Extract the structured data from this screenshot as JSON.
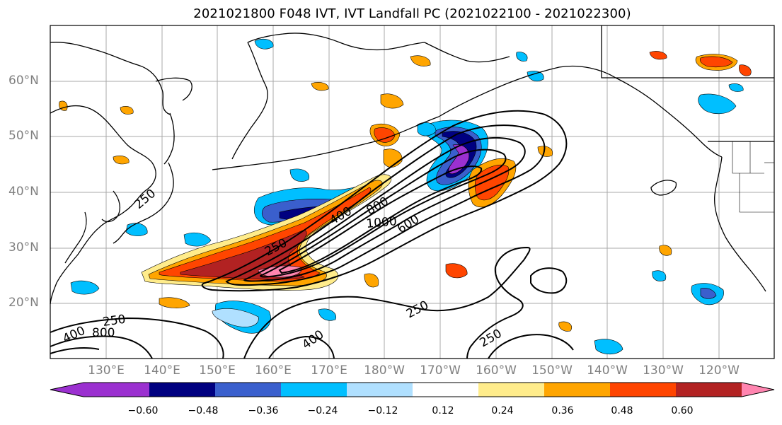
{
  "title": "2021021800 F048 IVT, IVT Landfall PC (2021022100 - 2021022300)",
  "map": {
    "projection": "PlateCarree",
    "lon_range_deg_east": [
      120,
      250
    ],
    "lat_range": [
      10,
      70
    ],
    "lat_ticks": [
      {
        "label": "20°N"
      },
      {
        "label": "30°N"
      },
      {
        "label": "40°N"
      },
      {
        "label": "50°N"
      },
      {
        "label": "60°N"
      }
    ],
    "lon_ticks": [
      {
        "label": "130°E"
      },
      {
        "label": "140°E"
      },
      {
        "label": "150°E"
      },
      {
        "label": "160°E"
      },
      {
        "label": "170°E"
      },
      {
        "label": "180°W"
      },
      {
        "label": "170°W"
      },
      {
        "label": "160°W"
      },
      {
        "label": "150°W"
      },
      {
        "label": "140°W"
      },
      {
        "label": "130°W"
      },
      {
        "label": "120°W"
      }
    ],
    "gridlines": true,
    "coastlines": true,
    "state_borders": true
  },
  "ivt_contours": {
    "levels": [
      250,
      400,
      600,
      800,
      1000
    ],
    "labels": [
      {
        "text": "250"
      },
      {
        "text": "400"
      },
      {
        "text": "600"
      },
      {
        "text": "800"
      },
      {
        "text": "1000"
      },
      {
        "text": "250"
      },
      {
        "text": "250"
      },
      {
        "text": "400"
      },
      {
        "text": "250"
      },
      {
        "text": "400"
      },
      {
        "text": "800"
      },
      {
        "text": "250"
      }
    ]
  },
  "colorbar": {
    "tick_labels": [
      "−0.60",
      "−0.48",
      "−0.36",
      "−0.24",
      "−0.12",
      "0.12",
      "0.24",
      "0.36",
      "0.48",
      "0.60"
    ],
    "colors": [
      "#9b30d0",
      "#000080",
      "#3a5fcd",
      "#00bfff",
      "#b0e0ff",
      "#ffffff",
      "#ffec8b",
      "#ffa500",
      "#ff4500",
      "#b22222",
      "#ff85b0"
    ],
    "extend": "both"
  },
  "colors": {
    "grid": "#a8a8a8",
    "contour": "#000000",
    "tick_text": "#808080"
  }
}
